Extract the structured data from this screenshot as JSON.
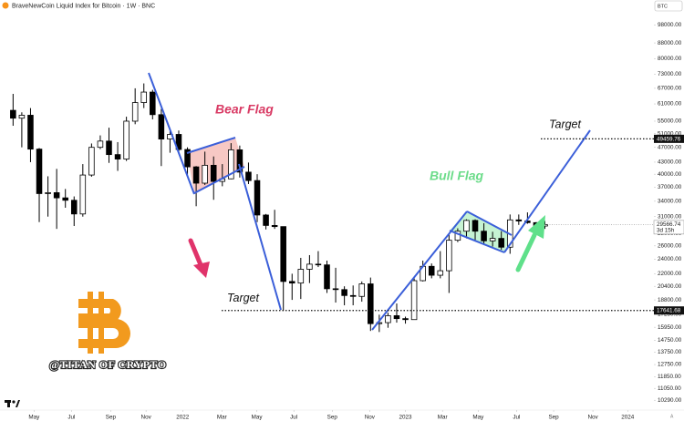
{
  "chart_data": {
    "type": "candlestick",
    "title": "BraveNewCoin Liquid Index for Bitcoin · 1W · BNC",
    "symbol": "BTC",
    "scale_mode": "A",
    "log_scale": true,
    "grid": false,
    "up_color": "#ffffff",
    "down_color": "#000000",
    "xlim": [
      -3,
      147
    ],
    "ylim": [
      9700,
      109000
    ],
    "xticks": [
      {
        "value": 4.8,
        "label": "May"
      },
      {
        "value": 13.4,
        "label": "Jul"
      },
      {
        "value": 22.4,
        "label": "Sep"
      },
      {
        "value": 30.5,
        "label": "Nov"
      },
      {
        "value": 38.9,
        "label": "2022"
      },
      {
        "value": 47.9,
        "label": "Mar"
      },
      {
        "value": 55.9,
        "label": "May"
      },
      {
        "value": 64.4,
        "label": "Jul"
      },
      {
        "value": 73.2,
        "label": "Sep"
      },
      {
        "value": 81.8,
        "label": "Nov"
      },
      {
        "value": 90,
        "label": "2023"
      },
      {
        "value": 98.5,
        "label": "Mar"
      },
      {
        "value": 106.7,
        "label": "May"
      },
      {
        "value": 115.5,
        "label": "Jul"
      },
      {
        "value": 124,
        "label": "Sep"
      },
      {
        "value": 133,
        "label": "Nov"
      },
      {
        "value": 141,
        "label": "2024"
      }
    ],
    "yticks": [
      {
        "value": 98000,
        "label": "98000.00"
      },
      {
        "value": 88000,
        "label": "88000.00"
      },
      {
        "value": 80000,
        "label": "80000.00"
      },
      {
        "value": 73000,
        "label": "73000.00"
      },
      {
        "value": 67000,
        "label": "67000.00"
      },
      {
        "value": 61000,
        "label": "61000.00"
      },
      {
        "value": 55000,
        "label": "55000.00"
      },
      {
        "value": 51000,
        "label": "51000.00"
      },
      {
        "value": 47000,
        "label": "47000.00"
      },
      {
        "value": 43000,
        "label": "43000.00"
      },
      {
        "value": 40000,
        "label": "40000.00"
      },
      {
        "value": 37000,
        "label": "37000.00"
      },
      {
        "value": 34000,
        "label": "34000.00"
      },
      {
        "value": 31000,
        "label": "31000.00"
      },
      {
        "value": 28000,
        "label": "28000.00"
      },
      {
        "value": 26000,
        "label": "26000.00"
      },
      {
        "value": 24000,
        "label": "24000.00"
      },
      {
        "value": 22000,
        "label": "22000.00"
      },
      {
        "value": 20400,
        "label": "20400.00"
      },
      {
        "value": 18800,
        "label": "18800.00"
      },
      {
        "value": 17250,
        "label": "17250.00"
      },
      {
        "value": 15950,
        "label": "15950.00"
      },
      {
        "value": 14750,
        "label": "14750.00"
      },
      {
        "value": 13750,
        "label": "13750.00"
      },
      {
        "value": 12750,
        "label": "12750.00"
      },
      {
        "value": 11850,
        "label": "11850.00"
      },
      {
        "value": 11050,
        "label": "11050.00"
      },
      {
        "value": 10290,
        "label": "10290.00"
      }
    ],
    "x": [
      0,
      2,
      4,
      6,
      8,
      10,
      12,
      14,
      16,
      18,
      20,
      22,
      24,
      26,
      28,
      30,
      32,
      34,
      36,
      38,
      40,
      42,
      44,
      46,
      48,
      50,
      52,
      54,
      56,
      58,
      60,
      62,
      64,
      66,
      68,
      70,
      72,
      74,
      76,
      78,
      80,
      82,
      84,
      86,
      88,
      90,
      92,
      94,
      96,
      98,
      100,
      102,
      104,
      106,
      108,
      110,
      112,
      114,
      116,
      118,
      120,
      122
    ],
    "open": [
      58700,
      56000,
      57000,
      46500,
      35600,
      35800,
      34700,
      34200,
      31500,
      39800,
      47000,
      48800,
      45000,
      43800,
      55000,
      61500,
      65500,
      57200,
      49400,
      50800,
      46400,
      41800,
      37900,
      42200,
      38300,
      38900,
      46300,
      40500,
      38500,
      31300,
      29400,
      29200,
      21000,
      20800,
      22600,
      23300,
      23200,
      20100,
      20000,
      19300,
      19200,
      20700,
      16300,
      16400,
      17100,
      16800,
      16700,
      21100,
      23000,
      21800,
      22400,
      26900,
      28400,
      30300,
      28400,
      26800,
      27200,
      25800,
      30400,
      30200,
      29900,
      29300
    ],
    "high": [
      64800,
      58000,
      59500,
      46800,
      39500,
      41300,
      36600,
      35000,
      42500,
      48100,
      50500,
      52900,
      48500,
      56500,
      67000,
      69000,
      66400,
      59200,
      52000,
      52000,
      47000,
      42000,
      45800,
      44500,
      42500,
      48200,
      47500,
      42900,
      40000,
      31500,
      32300,
      29200,
      22000,
      24200,
      24600,
      25200,
      23800,
      22800,
      20400,
      20500,
      21000,
      21500,
      17200,
      17400,
      18400,
      17000,
      21400,
      23800,
      23400,
      25200,
      28000,
      28900,
      30500,
      30500,
      29800,
      28300,
      28400,
      31400,
      31400,
      31800,
      30000,
      30200
    ],
    "low": [
      53500,
      47000,
      43000,
      30000,
      31000,
      28800,
      32700,
      29300,
      31000,
      39400,
      46500,
      42800,
      40800,
      43300,
      54000,
      59500,
      55600,
      42000,
      45500,
      45700,
      39600,
      33000,
      37500,
      34300,
      37200,
      38800,
      39200,
      37700,
      30000,
      28700,
      28800,
      17600,
      18800,
      18900,
      20800,
      22900,
      19600,
      18500,
      18200,
      18200,
      18600,
      15600,
      15500,
      15900,
      16400,
      16300,
      16700,
      21000,
      21400,
      21400,
      19600,
      26600,
      27200,
      26900,
      26300,
      25900,
      25400,
      24800,
      29500,
      29700,
      28600,
      28800
    ],
    "close": [
      56000,
      57000,
      46500,
      35600,
      35800,
      34700,
      34200,
      31500,
      39800,
      47000,
      48800,
      45000,
      43800,
      55000,
      61500,
      65500,
      57200,
      49400,
      50800,
      46400,
      41800,
      37900,
      42200,
      38300,
      38900,
      46300,
      40500,
      38500,
      31300,
      29400,
      29200,
      21000,
      20800,
      22600,
      23300,
      23200,
      20100,
      20000,
      19300,
      19200,
      20700,
      16300,
      16400,
      17100,
      16800,
      16700,
      21100,
      23000,
      21800,
      22400,
      26900,
      28400,
      30300,
      28400,
      26800,
      27200,
      25800,
      30400,
      30200,
      29900,
      29300,
      29566.74
    ],
    "last_price": 29566.74,
    "countdown": "3d 15h",
    "targets": [
      {
        "label": "Target",
        "value": 49459.76
      },
      {
        "label": "Target",
        "value": 17641.68
      }
    ],
    "annotations": {
      "bear_flag": "Bear Flag",
      "bull_flag": "Bull Flag",
      "watermark": "@TITAN OF CRYPTO"
    }
  }
}
